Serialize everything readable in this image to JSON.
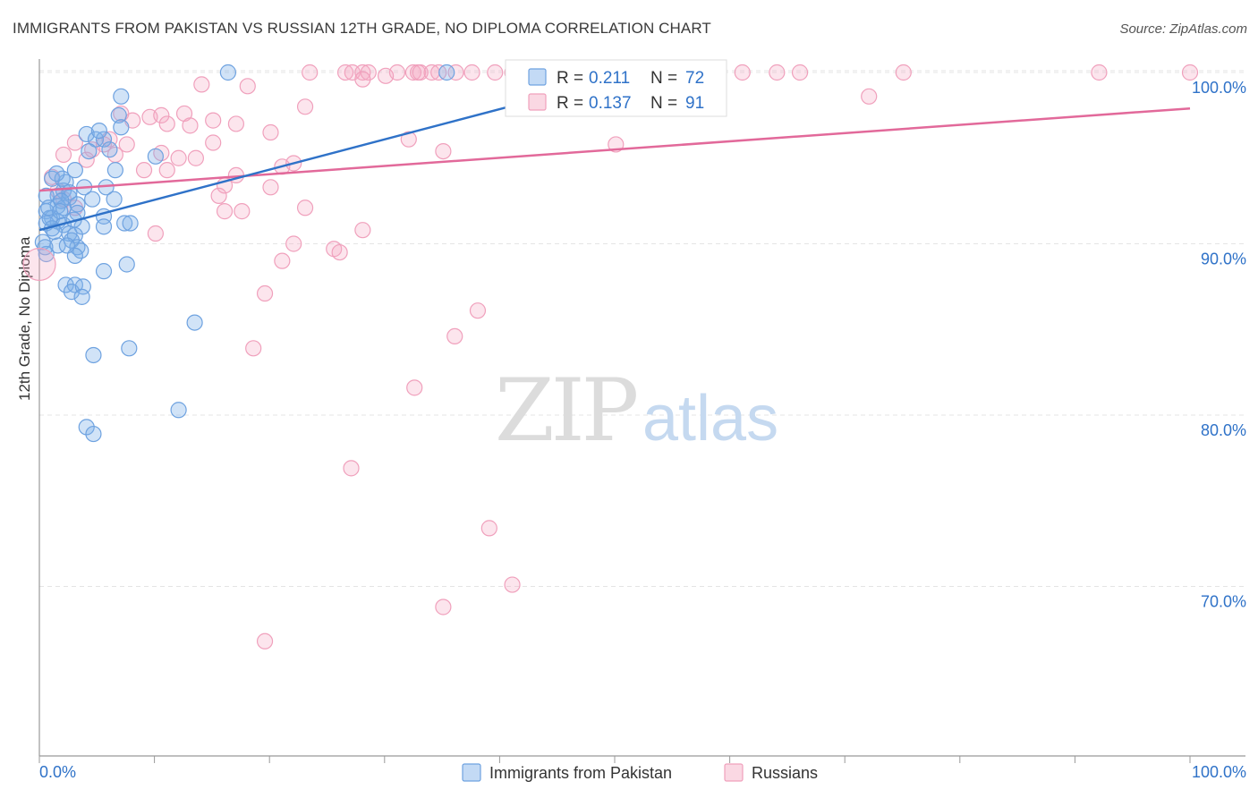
{
  "title": "IMMIGRANTS FROM PAKISTAN VS RUSSIAN 12TH GRADE, NO DIPLOMA CORRELATION CHART",
  "source": "Source: ZipAtlas.com",
  "watermark": {
    "zip": "ZIP",
    "atlas": "atlas"
  },
  "colors": {
    "blue": "#7aaee8",
    "blue_line": "#2f72c8",
    "blue_text": "#2f72c8",
    "pink": "#f4a9c2",
    "pink_line": "#e2699a",
    "grid": "#e4e4e4",
    "axis": "#999999"
  },
  "legend": {
    "rows": [
      {
        "r_label": "R = ",
        "r_value": "0.211",
        "n_label": "N = ",
        "n_value": "72",
        "color": "blue"
      },
      {
        "r_label": "R = ",
        "r_value": "0.137",
        "n_label": "N = ",
        "n_value": "91",
        "color": "pink"
      }
    ]
  },
  "bottom_legend": [
    {
      "label": "Immigrants from Pakistan",
      "color": "blue"
    },
    {
      "label": "Russians",
      "color": "pink"
    }
  ],
  "chart_data": {
    "type": "scatter",
    "xlabel": "",
    "ylabel": "12th Grade, No Diploma",
    "xlim": [
      0,
      100
    ],
    "ylim": [
      60,
      103.5
    ],
    "x_tick_labels": [
      "0.0%",
      "100.0%"
    ],
    "y_ticks": [
      70,
      80,
      90,
      100
    ],
    "y_tick_labels": [
      "70.0%",
      "80.0%",
      "90.0%",
      "100.0%"
    ],
    "grid": true,
    "series": [
      {
        "name": "Immigrants from Pakistan",
        "color": "#7aaee8",
        "trend": {
          "x": [
            0,
            40.8
          ],
          "y": [
            90.8,
            98.0
          ]
        },
        "points": [
          [
            16.4,
            100
          ],
          [
            35.4,
            100
          ],
          [
            7.1,
            98.6
          ],
          [
            6.9,
            97.5
          ],
          [
            7.1,
            96.8
          ],
          [
            4.1,
            96.4
          ],
          [
            4.9,
            96.1
          ],
          [
            5.6,
            96.1
          ],
          [
            3.1,
            94.3
          ],
          [
            6.6,
            94.3
          ],
          [
            10.1,
            95.1
          ],
          [
            1.1,
            93.8
          ],
          [
            3.9,
            93.3
          ],
          [
            5.8,
            93.3
          ],
          [
            2.1,
            93.1
          ],
          [
            1.6,
            92.8
          ],
          [
            0.6,
            92.8
          ],
          [
            2.6,
            92.7
          ],
          [
            3.3,
            92.3
          ],
          [
            6.5,
            92.6
          ],
          [
            1.6,
            92.2
          ],
          [
            2.1,
            92.1
          ],
          [
            0.6,
            91.9
          ],
          [
            3.3,
            91.8
          ],
          [
            5.6,
            91.6
          ],
          [
            1.1,
            91.5
          ],
          [
            1.6,
            91.3
          ],
          [
            0.6,
            91.2
          ],
          [
            2.1,
            91.1
          ],
          [
            3.7,
            91.0
          ],
          [
            5.6,
            91.0
          ],
          [
            7.4,
            91.2
          ],
          [
            7.9,
            91.2
          ],
          [
            1.1,
            90.9
          ],
          [
            2.6,
            90.6
          ],
          [
            3.1,
            90.5
          ],
          [
            2.8,
            90.2
          ],
          [
            0.3,
            90.1
          ],
          [
            1.6,
            89.9
          ],
          [
            3.3,
            89.8
          ],
          [
            3.6,
            89.6
          ],
          [
            0.6,
            89.4
          ],
          [
            3.1,
            89.3
          ],
          [
            7.6,
            88.8
          ],
          [
            5.6,
            88.4
          ],
          [
            2.3,
            87.6
          ],
          [
            3.1,
            87.6
          ],
          [
            2.8,
            87.2
          ],
          [
            3.8,
            87.5
          ],
          [
            3.7,
            86.9
          ],
          [
            13.5,
            85.4
          ],
          [
            7.8,
            83.9
          ],
          [
            4.7,
            83.5
          ],
          [
            12.1,
            80.3
          ],
          [
            4.1,
            79.3
          ],
          [
            4.7,
            78.9
          ],
          [
            2.3,
            93.6
          ],
          [
            2.6,
            93.0
          ],
          [
            1.9,
            92.5
          ],
          [
            0.9,
            91.5
          ],
          [
            1.3,
            90.7
          ],
          [
            2.4,
            89.9
          ],
          [
            4.3,
            95.4
          ],
          [
            5.2,
            96.6
          ],
          [
            6.1,
            95.5
          ],
          [
            2.0,
            93.8
          ],
          [
            1.5,
            94.1
          ],
          [
            0.8,
            92.1
          ],
          [
            3.0,
            91.4
          ],
          [
            1.8,
            91.9
          ],
          [
            4.6,
            92.6
          ],
          [
            0.5,
            89.8
          ]
        ]
      },
      {
        "name": "Russians",
        "color": "#f4a9c2",
        "trend": {
          "x": [
            0,
            100
          ],
          "y": [
            93.1,
            97.9
          ]
        },
        "points": [
          [
            23.5,
            100
          ],
          [
            26.6,
            100
          ],
          [
            27.2,
            100
          ],
          [
            28.1,
            100
          ],
          [
            28.6,
            100
          ],
          [
            31.1,
            100
          ],
          [
            32.5,
            100
          ],
          [
            32.9,
            100
          ],
          [
            33.1,
            100
          ],
          [
            34.1,
            100
          ],
          [
            34.7,
            100
          ],
          [
            36.2,
            100
          ],
          [
            37.6,
            100
          ],
          [
            39.6,
            100
          ],
          [
            41.1,
            100
          ],
          [
            43.6,
            100
          ],
          [
            45.1,
            100
          ],
          [
            47.6,
            100
          ],
          [
            48.6,
            100
          ],
          [
            50.6,
            100
          ],
          [
            52.6,
            100
          ],
          [
            54.6,
            100
          ],
          [
            58.7,
            100
          ],
          [
            61.1,
            100
          ],
          [
            64.1,
            100
          ],
          [
            66.1,
            100
          ],
          [
            75.1,
            100
          ],
          [
            92.1,
            100
          ],
          [
            100,
            100
          ],
          [
            30.1,
            99.8
          ],
          [
            14.1,
            99.3
          ],
          [
            18.1,
            99.2
          ],
          [
            28.1,
            99.6
          ],
          [
            72.1,
            98.6
          ],
          [
            23.1,
            98.0
          ],
          [
            7.1,
            97.6
          ],
          [
            8.1,
            97.2
          ],
          [
            9.6,
            97.4
          ],
          [
            10.6,
            97.5
          ],
          [
            12.6,
            97.6
          ],
          [
            15.1,
            97.2
          ],
          [
            17.1,
            97.0
          ],
          [
            11.1,
            97.0
          ],
          [
            13.1,
            96.9
          ],
          [
            20.1,
            96.5
          ],
          [
            3.1,
            95.9
          ],
          [
            4.6,
            95.5
          ],
          [
            5.6,
            95.8
          ],
          [
            6.1,
            96.1
          ],
          [
            7.6,
            95.8
          ],
          [
            15.1,
            95.9
          ],
          [
            32.1,
            96.1
          ],
          [
            35.1,
            95.4
          ],
          [
            50.1,
            95.8
          ],
          [
            2.1,
            95.2
          ],
          [
            4.1,
            94.9
          ],
          [
            6.6,
            95.2
          ],
          [
            10.6,
            95.3
          ],
          [
            12.1,
            95.0
          ],
          [
            13.6,
            95.0
          ],
          [
            9.1,
            94.3
          ],
          [
            11.1,
            94.3
          ],
          [
            17.1,
            94.0
          ],
          [
            21.1,
            94.5
          ],
          [
            22.1,
            94.7
          ],
          [
            16.1,
            93.4
          ],
          [
            20.1,
            93.3
          ],
          [
            1.1,
            93.9
          ],
          [
            1.6,
            93.1
          ],
          [
            2.1,
            92.6
          ],
          [
            15.6,
            92.8
          ],
          [
            23.1,
            92.1
          ],
          [
            17.6,
            91.9
          ],
          [
            16.1,
            91.9
          ],
          [
            3.1,
            92.1
          ],
          [
            10.1,
            90.6
          ],
          [
            28.1,
            90.8
          ],
          [
            22.1,
            90.0
          ],
          [
            25.6,
            89.7
          ],
          [
            26.1,
            89.5
          ],
          [
            21.1,
            89.0
          ],
          [
            19.6,
            87.1
          ],
          [
            38.1,
            86.1
          ],
          [
            36.1,
            84.6
          ],
          [
            18.6,
            83.9
          ],
          [
            32.6,
            81.6
          ],
          [
            27.1,
            76.9
          ],
          [
            39.1,
            73.4
          ],
          [
            41.1,
            70.1
          ],
          [
            35.1,
            68.8
          ],
          [
            19.6,
            66.8
          ]
        ]
      }
    ]
  }
}
